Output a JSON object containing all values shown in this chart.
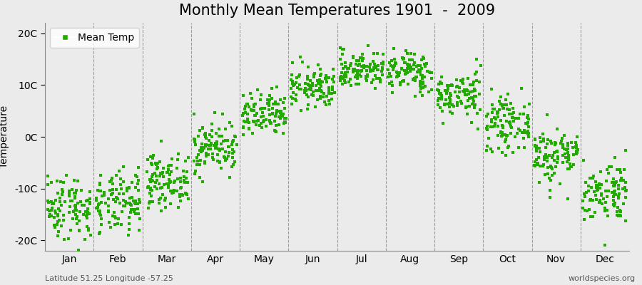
{
  "title": "Monthly Mean Temperatures 1901  -  2009",
  "ylabel": "Temperature",
  "xlabel_labels": [
    "Jan",
    "Feb",
    "Mar",
    "Apr",
    "May",
    "Jun",
    "Jul",
    "Aug",
    "Sep",
    "Oct",
    "Nov",
    "Dec"
  ],
  "yticks": [
    -20,
    -10,
    0,
    10,
    20
  ],
  "ytick_labels": [
    "-20C",
    "-10C",
    "0C",
    "10C",
    "20C"
  ],
  "ylim": [
    -22,
    22
  ],
  "footer_left": "Latitude 51.25 Longitude -57.25",
  "footer_right": "worldspecies.org",
  "legend_label": "Mean Temp",
  "marker_color": "#22AA00",
  "bg_color": "#EBEBEB",
  "plot_bg": "#EBEBEB",
  "years": 109,
  "monthly_means": [
    -13.5,
    -13.0,
    -8.5,
    -2.0,
    4.0,
    9.5,
    13.0,
    12.5,
    8.0,
    2.5,
    -3.5,
    -10.5
  ],
  "monthly_stds": [
    3.2,
    3.0,
    2.5,
    2.5,
    2.2,
    2.0,
    1.8,
    2.0,
    2.2,
    2.5,
    2.8,
    3.0
  ],
  "title_fontsize": 15,
  "axis_fontsize": 10,
  "tick_fontsize": 10,
  "footer_fontsize": 8,
  "marker_size": 12
}
